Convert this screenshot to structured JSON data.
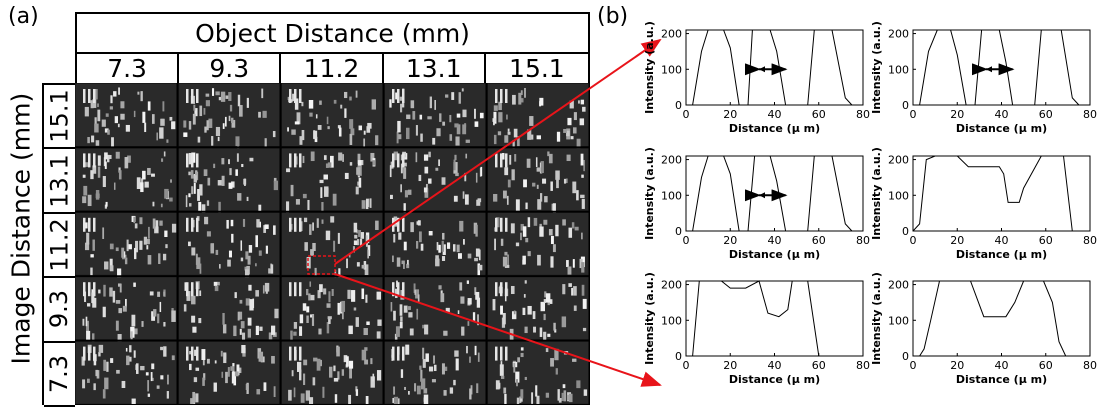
{
  "labels": {
    "panel_a": "(a)",
    "panel_b": "(b)"
  },
  "object_distance": {
    "title": "Object Distance (mm)",
    "values": [
      "7.3",
      "9.3",
      "11.2",
      "13.1",
      "15.1"
    ]
  },
  "image_distance": {
    "title": "Image Distance (mm)",
    "values": [
      "15.1",
      "13.1",
      "11.2",
      "9.3",
      "7.3"
    ]
  },
  "colors": {
    "arrow": "#e8141a",
    "frame": "#000000",
    "mosaic_bg": "#1b1b1b"
  },
  "chart_data": [
    {
      "type": "line",
      "xlabel": "Distance (μ m)",
      "ylabel": "Intensity (a.u.)",
      "xlim": [
        0,
        80
      ],
      "ylim": [
        0,
        210
      ],
      "xticks": [
        0,
        20,
        40,
        60,
        80
      ],
      "yticks": [
        0,
        100,
        200
      ],
      "annotation": "double-arrow",
      "x": [
        0,
        3,
        7,
        10,
        17,
        20,
        24,
        28,
        30,
        38,
        41,
        45,
        48,
        55,
        58,
        63,
        66,
        72,
        75
      ],
      "values": [
        0,
        0,
        150,
        210,
        210,
        160,
        0,
        0,
        210,
        210,
        150,
        0,
        0,
        0,
        210,
        210,
        210,
        20,
        0
      ]
    },
    {
      "type": "line",
      "xlabel": "Distance (μ m)",
      "ylabel": "Intensity (a.u.)",
      "xlim": [
        0,
        80
      ],
      "ylim": [
        0,
        210
      ],
      "xticks": [
        0,
        20,
        40,
        60,
        80
      ],
      "yticks": [
        0,
        100,
        200
      ],
      "annotation": "double-arrow",
      "x": [
        0,
        3,
        7,
        11,
        17,
        20,
        24,
        28,
        31,
        39,
        42,
        45,
        49,
        55,
        58,
        64,
        67,
        72,
        75
      ],
      "values": [
        0,
        0,
        150,
        210,
        210,
        140,
        0,
        0,
        210,
        210,
        120,
        0,
        0,
        0,
        210,
        210,
        210,
        20,
        0
      ]
    },
    {
      "type": "line",
      "xlabel": "Distance (μ m)",
      "ylabel": "Intensity (a.u.)",
      "xlim": [
        0,
        80
      ],
      "ylim": [
        0,
        210
      ],
      "xticks": [
        0,
        20,
        40,
        60,
        80
      ],
      "yticks": [
        0,
        100,
        200
      ],
      "annotation": "double-arrow",
      "x": [
        0,
        3,
        7,
        10,
        17,
        20,
        24,
        28,
        31,
        38,
        41,
        45,
        48,
        55,
        58,
        63,
        66,
        72,
        75
      ],
      "values": [
        0,
        0,
        150,
        210,
        210,
        160,
        0,
        0,
        210,
        210,
        140,
        0,
        0,
        0,
        210,
        210,
        210,
        20,
        0
      ]
    },
    {
      "type": "line",
      "xlabel": "Distance (μ m)",
      "ylabel": "Intensity (a.u.)",
      "xlim": [
        0,
        80
      ],
      "ylim": [
        0,
        210
      ],
      "xticks": [
        0,
        20,
        40,
        60,
        80
      ],
      "yticks": [
        0,
        100,
        200
      ],
      "x": [
        0,
        3,
        6,
        10,
        20,
        25,
        39,
        41,
        43,
        48,
        50,
        58,
        60,
        68,
        72,
        75
      ],
      "values": [
        0,
        20,
        200,
        210,
        210,
        180,
        180,
        160,
        80,
        80,
        120,
        210,
        210,
        210,
        0,
        0
      ]
    },
    {
      "type": "line",
      "xlabel": "Distance (μ m)",
      "ylabel": "Intensity (a.u.)",
      "xlim": [
        0,
        80
      ],
      "ylim": [
        0,
        210
      ],
      "xticks": [
        0,
        20,
        40,
        60,
        80
      ],
      "yticks": [
        0,
        100,
        200
      ],
      "x": [
        0,
        3,
        6,
        16,
        20,
        27,
        33,
        37,
        42,
        46,
        48,
        53,
        55,
        60,
        63
      ],
      "values": [
        0,
        0,
        210,
        210,
        190,
        190,
        210,
        120,
        110,
        130,
        210,
        210,
        210,
        0,
        0
      ]
    },
    {
      "type": "line",
      "xlabel": "Distance (μ m)",
      "ylabel": "Intensity (a.u.)",
      "xlim": [
        0,
        80
      ],
      "ylim": [
        0,
        210
      ],
      "xticks": [
        0,
        20,
        40,
        60,
        80
      ],
      "yticks": [
        0,
        100,
        200
      ],
      "x": [
        0,
        3,
        5,
        8,
        12,
        22,
        26,
        32,
        42,
        46,
        50,
        59,
        63,
        66,
        69
      ],
      "values": [
        0,
        0,
        20,
        100,
        210,
        210,
        210,
        110,
        110,
        150,
        210,
        210,
        150,
        40,
        0
      ]
    }
  ]
}
